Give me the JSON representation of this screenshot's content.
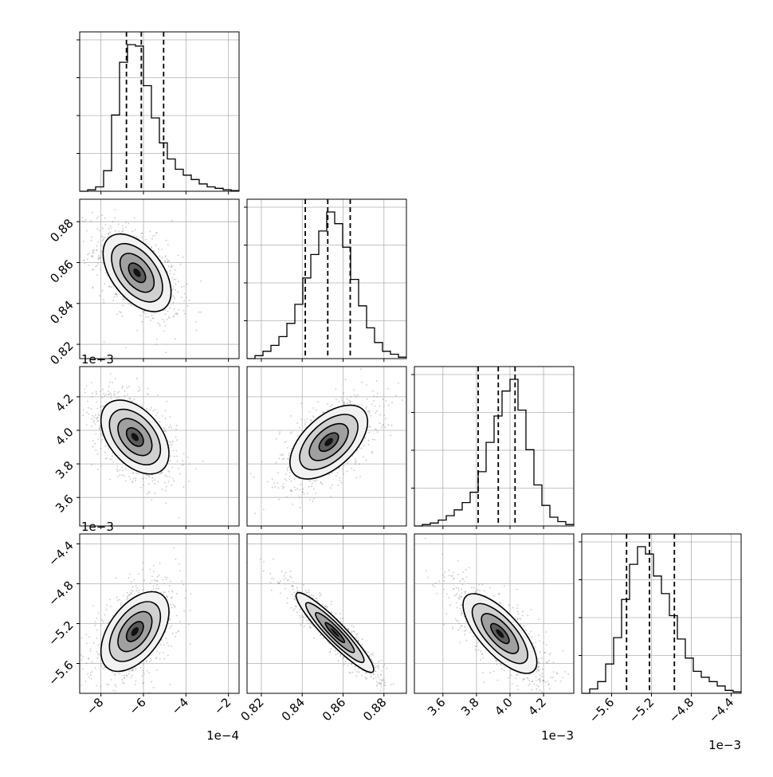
{
  "chart_data": {
    "type": "corner",
    "params": [
      {
        "id": "p0",
        "unit_scale": "1e-4",
        "ticks": [
          -8,
          -6,
          -4,
          -2
        ],
        "tick_labels": [
          "−8",
          "−6",
          "−4",
          "−2"
        ],
        "range": [
          -9.0,
          -1.5
        ],
        "quantiles": [
          -6.8,
          -6.1,
          -5.05
        ]
      },
      {
        "id": "p1",
        "unit_scale": "",
        "ticks": [
          0.82,
          0.84,
          0.86,
          0.88
        ],
        "tick_labels": [
          "0.82",
          "0.84",
          "0.86",
          "0.88"
        ],
        "range": [
          0.813,
          0.891
        ],
        "quantiles": [
          0.8415,
          0.8525,
          0.8635
        ]
      },
      {
        "id": "p2",
        "unit_scale": "1e−3",
        "ticks": [
          3.6,
          3.8,
          4.0,
          4.2
        ],
        "tick_labels": [
          "3.6",
          "3.8",
          "4.0",
          "4.2"
        ],
        "range": [
          3.43,
          4.38
        ],
        "quantiles": [
          3.81,
          3.93,
          4.03
        ]
      },
      {
        "id": "p3",
        "unit_scale": "1e−3",
        "ticks": [
          -5.6,
          -5.2,
          -4.8,
          -4.4
        ],
        "tick_labels": [
          "−5.6",
          "−5.2",
          "−4.8",
          "−4.4"
        ],
        "range": [
          -5.9,
          -4.3
        ],
        "quantiles": [
          -5.45,
          -5.22,
          -4.97
        ]
      }
    ],
    "offset_texts": {
      "x0": "1e−4",
      "x2": "1e−3",
      "x3": "1e−3",
      "y2": "1e−3",
      "y3": "1e−3"
    },
    "hist1d": [
      [
        0.0,
        0.01,
        0.03,
        0.14,
        0.52,
        0.88,
        1.0,
        0.99,
        0.72,
        0.5,
        0.33,
        0.22,
        0.15,
        0.11,
        0.08,
        0.05,
        0.03,
        0.02,
        0.01,
        0.005
      ],
      [
        0.0,
        0.02,
        0.05,
        0.09,
        0.15,
        0.24,
        0.37,
        0.55,
        0.71,
        0.87,
        1.0,
        0.92,
        0.76,
        0.54,
        0.36,
        0.21,
        0.11,
        0.05,
        0.03,
        0.01
      ],
      [
        0.0,
        0.01,
        0.02,
        0.04,
        0.07,
        0.11,
        0.16,
        0.23,
        0.37,
        0.57,
        0.75,
        0.92,
        1.0,
        0.79,
        0.52,
        0.28,
        0.14,
        0.06,
        0.03,
        0.01
      ],
      [
        0.0,
        0.03,
        0.08,
        0.2,
        0.38,
        0.64,
        0.88,
        1.0,
        0.95,
        0.8,
        0.68,
        0.53,
        0.37,
        0.24,
        0.15,
        0.11,
        0.08,
        0.05,
        0.02,
        0.01
      ]
    ],
    "hist2d": [
      {
        "row": 1,
        "col": 0,
        "center": [
          -6.3,
          0.855
        ],
        "sigma": [
          0.8,
          0.0095
        ],
        "rho": -0.5
      },
      {
        "row": 2,
        "col": 0,
        "center": [
          -6.4,
          3.96
        ],
        "sigma": [
          0.8,
          0.11
        ],
        "rho": -0.45
      },
      {
        "row": 2,
        "col": 1,
        "center": [
          0.853,
          3.93
        ],
        "sigma": [
          0.0095,
          0.11
        ],
        "rho": 0.55
      },
      {
        "row": 3,
        "col": 0,
        "center": [
          -6.4,
          -5.28
        ],
        "sigma": [
          0.8,
          0.2
        ],
        "rho": 0.5
      },
      {
        "row": 3,
        "col": 1,
        "center": [
          0.856,
          -5.29
        ],
        "sigma": [
          0.0095,
          0.2
        ],
        "rho": -0.93
      },
      {
        "row": 3,
        "col": 2,
        "center": [
          3.94,
          -5.3
        ],
        "sigma": [
          0.11,
          0.2
        ],
        "rho": -0.72
      }
    ],
    "contour_levels_sigma": [
      0.5,
      1.0,
      1.5,
      2.0
    ],
    "grid": true,
    "colors": {
      "axes": "#000000",
      "grid": "#b0b0b0",
      "scatter": "#777777",
      "line": "#000000"
    }
  }
}
